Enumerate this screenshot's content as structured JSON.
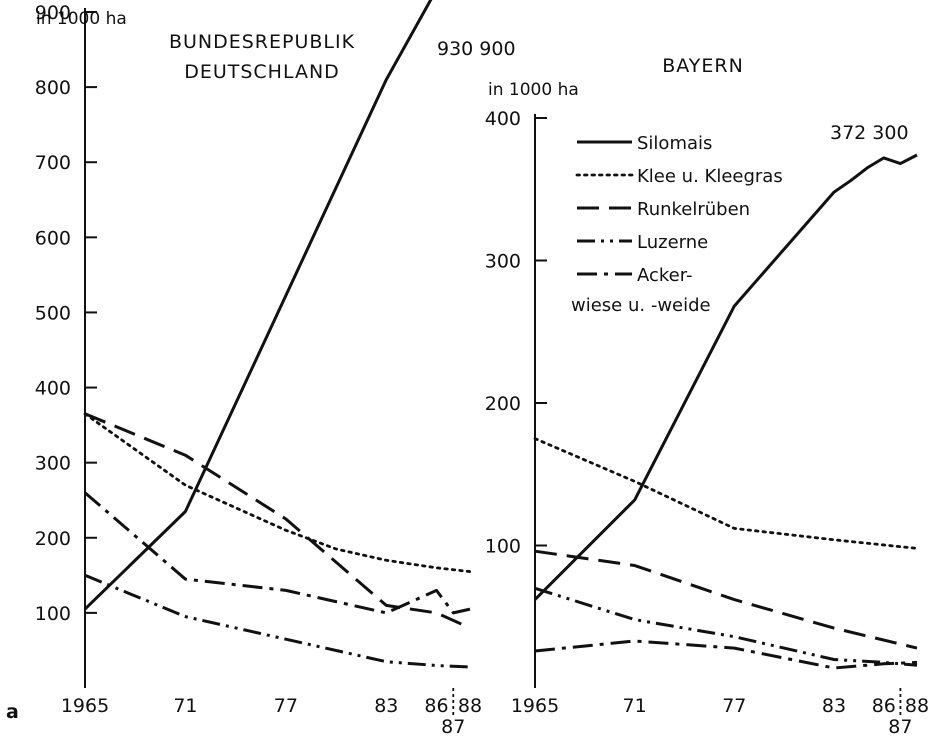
{
  "panel_letter": "a",
  "chart_data": [
    {
      "type": "line",
      "title": "BUNDESREPUBLIK DEUTSCHLAND",
      "title_lines": [
        "BUNDESREPUBLIK",
        "DEUTSCHLAND"
      ],
      "ylabel": "in 1000 ha",
      "ylim": [
        0,
        900
      ],
      "yticks": [
        100,
        200,
        300,
        400,
        500,
        600,
        700,
        800,
        900
      ],
      "xlim": [
        1965,
        1988
      ],
      "xticks": [
        1965,
        1971,
        1977,
        1983,
        1986,
        1987,
        1988
      ],
      "xtick_labels": [
        "1965",
        "71",
        "77",
        "83",
        "86",
        "87",
        "88"
      ],
      "annotation": "930 900",
      "legend": "none",
      "series": [
        {
          "name": "Silomais",
          "style": "solid",
          "x": [
            1965,
            1971,
            1983,
            1986,
            1988
          ],
          "y": [
            105,
            235,
            810,
            930,
            920
          ]
        },
        {
          "name": "Klee u. Kleegras",
          "style": "dotted",
          "x": [
            1965,
            1971,
            1977,
            1980,
            1983,
            1986,
            1988
          ],
          "y": [
            365,
            270,
            210,
            185,
            170,
            160,
            155
          ]
        },
        {
          "name": "Runkelrüben",
          "style": "dashed",
          "x": [
            1965,
            1971,
            1977,
            1983,
            1986,
            1988
          ],
          "y": [
            365,
            310,
            225,
            110,
            100,
            80
          ]
        },
        {
          "name": "Luzerne",
          "style": "dash-dot-dot",
          "x": [
            1965,
            1971,
            1977,
            1983,
            1986,
            1988
          ],
          "y": [
            150,
            95,
            65,
            35,
            30,
            28
          ]
        },
        {
          "name": "Ackerwiese u. -weide",
          "style": "dash-dot",
          "x": [
            1965,
            1971,
            1977,
            1983,
            1986,
            1987,
            1988
          ],
          "y": [
            260,
            145,
            130,
            100,
            130,
            100,
            105
          ]
        }
      ]
    },
    {
      "type": "line",
      "title": "BAYERN",
      "title_lines": [
        "BAYERN"
      ],
      "ylabel": "in 1000 ha",
      "ylim": [
        0,
        400
      ],
      "yticks": [
        100,
        200,
        300,
        400
      ],
      "xlim": [
        1965,
        1988
      ],
      "xticks": [
        1965,
        1971,
        1977,
        1983,
        1986,
        1987,
        1988
      ],
      "xtick_labels": [
        "1965",
        "71",
        "77",
        "83",
        "86",
        "87",
        "88"
      ],
      "annotation": "372 300",
      "legend": "top-right",
      "legend_entries": [
        {
          "style": "solid",
          "lines": [
            "Silomais"
          ]
        },
        {
          "style": "dotted",
          "lines": [
            "Klee u. Kleegras"
          ]
        },
        {
          "style": "dashed",
          "lines": [
            "Runkelrüben"
          ]
        },
        {
          "style": "dash-dot-dot",
          "lines": [
            "Luzerne"
          ]
        },
        {
          "style": "dash-dot",
          "lines": [
            "Acker-",
            "wiese u. -weide"
          ]
        }
      ],
      "series": [
        {
          "name": "Silomais",
          "style": "solid",
          "x": [
            1965,
            1971,
            1977,
            1983,
            1984,
            1985,
            1986,
            1987,
            1988
          ],
          "y": [
            62,
            132,
            268,
            348,
            356,
            365,
            372,
            368,
            374
          ]
        },
        {
          "name": "Klee u. Kleegras",
          "style": "dotted",
          "x": [
            1965,
            1971,
            1977,
            1983,
            1988
          ],
          "y": [
            175,
            145,
            112,
            104,
            98
          ]
        },
        {
          "name": "Runkelrüben",
          "style": "dashed",
          "x": [
            1965,
            1971,
            1977,
            1983,
            1988
          ],
          "y": [
            96,
            86,
            62,
            42,
            28
          ]
        },
        {
          "name": "Luzerne",
          "style": "dash-dot-dot",
          "x": [
            1965,
            1971,
            1977,
            1983,
            1986,
            1988
          ],
          "y": [
            70,
            48,
            36,
            20,
            18,
            16
          ]
        },
        {
          "name": "Ackerwiese u. -weide",
          "style": "dash-dot",
          "x": [
            1965,
            1971,
            1977,
            1983,
            1986,
            1988
          ],
          "y": [
            26,
            33,
            28,
            14,
            17,
            18
          ]
        }
      ]
    }
  ]
}
